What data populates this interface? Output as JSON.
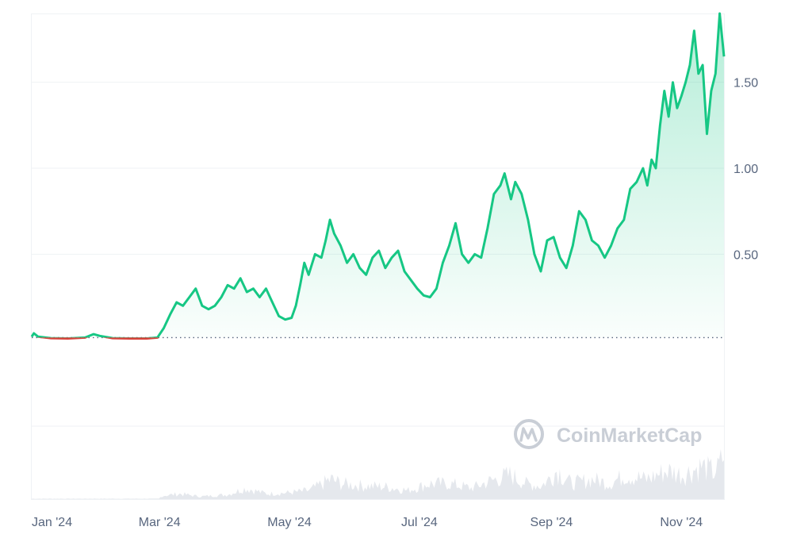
{
  "watermark": {
    "text": "CoinMarketCap"
  },
  "colors": {
    "up": "#16c784",
    "down": "#d9433b",
    "grid": "#eff2f5",
    "volume": "#cfd6de",
    "axis_text": "#58667e",
    "baseline": "#58667e"
  },
  "chart_data": {
    "type": "line",
    "title": "",
    "xlabel": "",
    "ylabel": "",
    "baseline_value": 0.015,
    "ylim": [
      -0.5,
      1.9
    ],
    "xlim": [
      "2024-01-01",
      "2024-11-21"
    ],
    "yticks": [
      {
        "value": 0.5,
        "label": "0.50"
      },
      {
        "value": 1.0,
        "label": "1.00"
      },
      {
        "value": 1.5,
        "label": "1.50"
      }
    ],
    "xticks": [
      {
        "date": "2024-01-01",
        "label": "Jan '24"
      },
      {
        "date": "2024-03-01",
        "label": "Mar '24"
      },
      {
        "date": "2024-05-01",
        "label": "May '24"
      },
      {
        "date": "2024-07-01",
        "label": "Jul '24"
      },
      {
        "date": "2024-09-01",
        "label": "Sep '24"
      },
      {
        "date": "2024-11-01",
        "label": "Nov '24"
      }
    ],
    "grid": true,
    "series": [
      {
        "points": [
          [
            "2024-01-01",
            0.02
          ],
          [
            "2024-01-02",
            0.04
          ],
          [
            "2024-01-04",
            0.02
          ],
          [
            "2024-01-10",
            0.012
          ],
          [
            "2024-01-18",
            0.01
          ],
          [
            "2024-01-26",
            0.015
          ],
          [
            "2024-01-30",
            0.035
          ],
          [
            "2024-02-02",
            0.025
          ],
          [
            "2024-02-08",
            0.012
          ],
          [
            "2024-02-16",
            0.01
          ],
          [
            "2024-02-24",
            0.01
          ],
          [
            "2024-02-29",
            0.015
          ],
          [
            "2024-03-03",
            0.07
          ],
          [
            "2024-03-06",
            0.15
          ],
          [
            "2024-03-09",
            0.22
          ],
          [
            "2024-03-12",
            0.2
          ],
          [
            "2024-03-15",
            0.25
          ],
          [
            "2024-03-18",
            0.3
          ],
          [
            "2024-03-21",
            0.2
          ],
          [
            "2024-03-24",
            0.18
          ],
          [
            "2024-03-27",
            0.2
          ],
          [
            "2024-03-30",
            0.25
          ],
          [
            "2024-04-02",
            0.32
          ],
          [
            "2024-04-05",
            0.3
          ],
          [
            "2024-04-08",
            0.36
          ],
          [
            "2024-04-11",
            0.28
          ],
          [
            "2024-04-14",
            0.3
          ],
          [
            "2024-04-17",
            0.25
          ],
          [
            "2024-04-20",
            0.3
          ],
          [
            "2024-04-23",
            0.22
          ],
          [
            "2024-04-26",
            0.14
          ],
          [
            "2024-04-29",
            0.12
          ],
          [
            "2024-05-02",
            0.13
          ],
          [
            "2024-05-04",
            0.2
          ],
          [
            "2024-05-06",
            0.32
          ],
          [
            "2024-05-08",
            0.45
          ],
          [
            "2024-05-10",
            0.38
          ],
          [
            "2024-05-13",
            0.5
          ],
          [
            "2024-05-16",
            0.48
          ],
          [
            "2024-05-18",
            0.58
          ],
          [
            "2024-05-20",
            0.7
          ],
          [
            "2024-05-22",
            0.62
          ],
          [
            "2024-05-25",
            0.55
          ],
          [
            "2024-05-28",
            0.45
          ],
          [
            "2024-05-31",
            0.5
          ],
          [
            "2024-06-03",
            0.42
          ],
          [
            "2024-06-06",
            0.38
          ],
          [
            "2024-06-09",
            0.48
          ],
          [
            "2024-06-12",
            0.52
          ],
          [
            "2024-06-15",
            0.42
          ],
          [
            "2024-06-18",
            0.48
          ],
          [
            "2024-06-21",
            0.52
          ],
          [
            "2024-06-24",
            0.4
          ],
          [
            "2024-06-27",
            0.35
          ],
          [
            "2024-06-30",
            0.3
          ],
          [
            "2024-07-03",
            0.26
          ],
          [
            "2024-07-06",
            0.25
          ],
          [
            "2024-07-09",
            0.3
          ],
          [
            "2024-07-12",
            0.45
          ],
          [
            "2024-07-15",
            0.55
          ],
          [
            "2024-07-18",
            0.68
          ],
          [
            "2024-07-21",
            0.5
          ],
          [
            "2024-07-24",
            0.45
          ],
          [
            "2024-07-27",
            0.5
          ],
          [
            "2024-07-30",
            0.48
          ],
          [
            "2024-08-02",
            0.65
          ],
          [
            "2024-08-05",
            0.85
          ],
          [
            "2024-08-08",
            0.9
          ],
          [
            "2024-08-10",
            0.97
          ],
          [
            "2024-08-13",
            0.82
          ],
          [
            "2024-08-15",
            0.92
          ],
          [
            "2024-08-18",
            0.85
          ],
          [
            "2024-08-21",
            0.7
          ],
          [
            "2024-08-24",
            0.5
          ],
          [
            "2024-08-27",
            0.4
          ],
          [
            "2024-08-30",
            0.58
          ],
          [
            "2024-09-02",
            0.6
          ],
          [
            "2024-09-05",
            0.48
          ],
          [
            "2024-09-08",
            0.42
          ],
          [
            "2024-09-11",
            0.55
          ],
          [
            "2024-09-14",
            0.75
          ],
          [
            "2024-09-17",
            0.7
          ],
          [
            "2024-09-20",
            0.58
          ],
          [
            "2024-09-23",
            0.55
          ],
          [
            "2024-09-26",
            0.48
          ],
          [
            "2024-09-29",
            0.55
          ],
          [
            "2024-10-02",
            0.65
          ],
          [
            "2024-10-05",
            0.7
          ],
          [
            "2024-10-08",
            0.88
          ],
          [
            "2024-10-11",
            0.92
          ],
          [
            "2024-10-14",
            1.0
          ],
          [
            "2024-10-16",
            0.9
          ],
          [
            "2024-10-18",
            1.05
          ],
          [
            "2024-10-20",
            1.0
          ],
          [
            "2024-10-22",
            1.25
          ],
          [
            "2024-10-24",
            1.45
          ],
          [
            "2024-10-26",
            1.3
          ],
          [
            "2024-10-28",
            1.5
          ],
          [
            "2024-10-30",
            1.35
          ],
          [
            "2024-11-01",
            1.42
          ],
          [
            "2024-11-03",
            1.5
          ],
          [
            "2024-11-05",
            1.6
          ],
          [
            "2024-11-07",
            1.8
          ],
          [
            "2024-11-09",
            1.55
          ],
          [
            "2024-11-11",
            1.6
          ],
          [
            "2024-11-13",
            1.2
          ],
          [
            "2024-11-15",
            1.45
          ],
          [
            "2024-11-17",
            1.55
          ],
          [
            "2024-11-19",
            1.9
          ],
          [
            "2024-11-21",
            1.65
          ]
        ]
      }
    ],
    "volume_series": [
      [
        "2024-01-01",
        0.01
      ],
      [
        "2024-02-29",
        0.01
      ],
      [
        "2024-03-02",
        0.08
      ],
      [
        "2024-03-10",
        0.12
      ],
      [
        "2024-03-20",
        0.06
      ],
      [
        "2024-04-01",
        0.1
      ],
      [
        "2024-04-10",
        0.25
      ],
      [
        "2024-04-20",
        0.12
      ],
      [
        "2024-05-01",
        0.15
      ],
      [
        "2024-05-10",
        0.2
      ],
      [
        "2024-05-20",
        0.45
      ],
      [
        "2024-05-25",
        0.35
      ],
      [
        "2024-06-05",
        0.3
      ],
      [
        "2024-06-15",
        0.28
      ],
      [
        "2024-06-25",
        0.2
      ],
      [
        "2024-07-05",
        0.35
      ],
      [
        "2024-07-15",
        0.35
      ],
      [
        "2024-07-25",
        0.25
      ],
      [
        "2024-08-05",
        0.45
      ],
      [
        "2024-08-12",
        0.55
      ],
      [
        "2024-08-20",
        0.35
      ],
      [
        "2024-08-27",
        0.3
      ],
      [
        "2024-09-03",
        0.65
      ],
      [
        "2024-09-10",
        0.35
      ],
      [
        "2024-09-20",
        0.45
      ],
      [
        "2024-09-28",
        0.35
      ],
      [
        "2024-10-05",
        0.55
      ],
      [
        "2024-10-15",
        0.45
      ],
      [
        "2024-10-25",
        0.65
      ],
      [
        "2024-11-01",
        0.55
      ],
      [
        "2024-11-10",
        0.75
      ],
      [
        "2024-11-16",
        0.6
      ],
      [
        "2024-11-21",
        1.0
      ]
    ]
  }
}
